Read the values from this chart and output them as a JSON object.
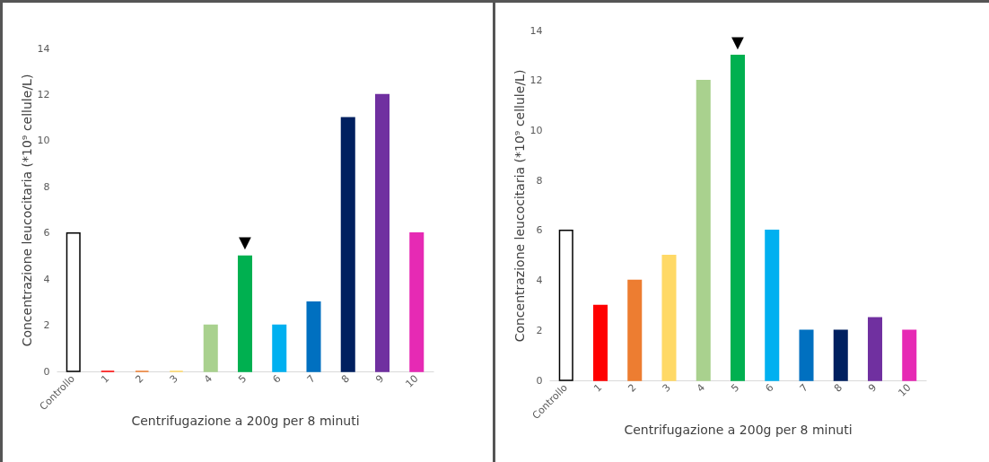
{
  "chart_data": [
    {
      "type": "bar",
      "categories": [
        "Controllo",
        "1",
        "2",
        "3",
        "4",
        "5",
        "6",
        "7",
        "8",
        "9",
        "10"
      ],
      "values": [
        6,
        0,
        0,
        0,
        2,
        5,
        2,
        3,
        11,
        12,
        6
      ],
      "colors": [
        "#ffffff",
        "#ff0000",
        "#ed7d31",
        "#ffd966",
        "#a9d18e",
        "#00b050",
        "#00b0f0",
        "#0070c0",
        "#002060",
        "#7030a0",
        "#e62ab4"
      ],
      "xlabel": "Centrifugazione a 200g per 8 minuti",
      "ylabel": "Concentrazione leucocitaria (*10⁹ cellule/L)",
      "ylim": [
        0,
        14
      ],
      "yticks": [
        0,
        2,
        4,
        6,
        8,
        10,
        12,
        14
      ],
      "annotations": [
        {
          "text": "▼",
          "x": "5",
          "y": 5
        }
      ]
    },
    {
      "type": "bar",
      "categories": [
        "Controllo",
        "1",
        "2",
        "3",
        "4",
        "5",
        "6",
        "7",
        "8",
        "9",
        "10"
      ],
      "values": [
        6,
        3,
        4,
        5,
        12,
        13,
        6,
        2,
        2,
        2.5,
        2
      ],
      "colors": [
        "#ffffff",
        "#ff0000",
        "#ed7d31",
        "#ffd966",
        "#a9d18e",
        "#00b050",
        "#00b0f0",
        "#0070c0",
        "#002060",
        "#7030a0",
        "#e62ab4"
      ],
      "xlabel": "Centrifugazione a 200g per 8 minuti",
      "ylabel": "Concentrazione leucocitaria (*10⁹ cellule/L)",
      "ylim": [
        0,
        14
      ],
      "yticks": [
        0,
        2,
        4,
        6,
        8,
        10,
        12,
        14
      ],
      "annotations": [
        {
          "text": "▼",
          "x": "5",
          "y": 13
        }
      ]
    }
  ]
}
